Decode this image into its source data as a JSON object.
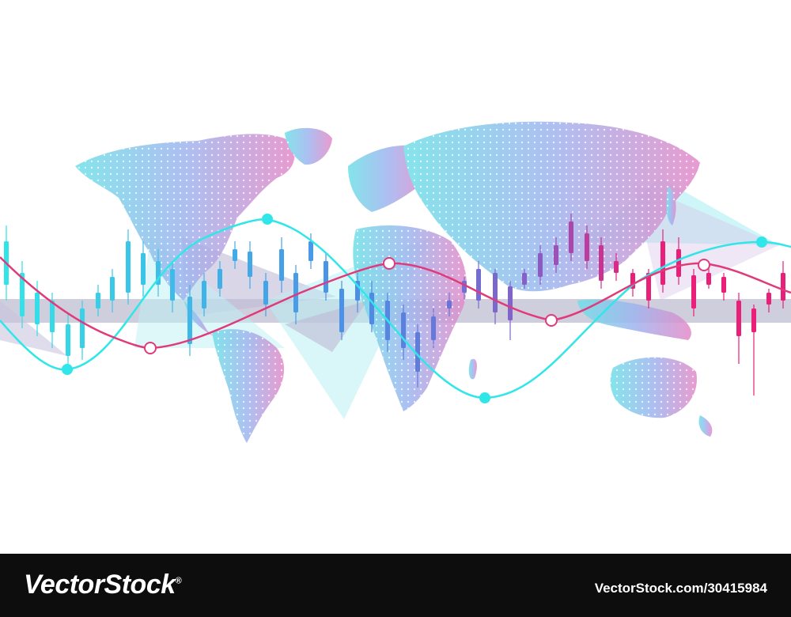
{
  "artwork": {
    "subject": "world-map-with-candlestick-and-wave-lines",
    "colors": {
      "cyan": "#31e6e8",
      "blue": "#4b8ee8",
      "violet": "#8a5cc4",
      "magenta": "#e8207a",
      "band": "#bdbdd0",
      "map_left": "#6fe0e8",
      "map_right": "#e48ac8"
    }
  },
  "footer": {
    "brand": "VectorStock",
    "brand_mark": "®",
    "credit": "VectorStock.com/30415984"
  }
}
